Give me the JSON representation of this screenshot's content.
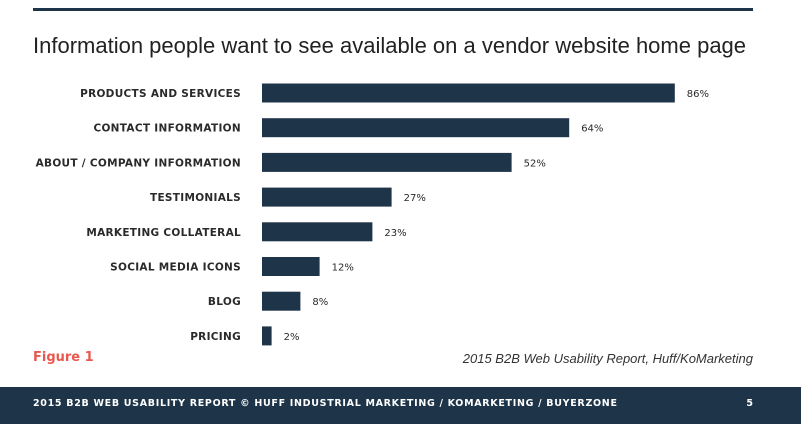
{
  "colors": {
    "bar": "#1e3449",
    "footer_bg": "#1e3449",
    "figure_label": "#e8584f",
    "text": "#2a2a2a"
  },
  "chart_data": {
    "type": "bar",
    "orientation": "horizontal",
    "title": "Information people want to see available on a vendor website home page",
    "categories": [
      "PRODUCTS AND SERVICES",
      "CONTACT INFORMATION",
      "ABOUT / COMPANY INFORMATION",
      "TESTIMONIALS",
      "MARKETING COLLATERAL",
      "SOCIAL MEDIA ICONS",
      "BLOG",
      "PRICING"
    ],
    "values": [
      86,
      64,
      52,
      27,
      23,
      12,
      8,
      2
    ],
    "value_labels": [
      "86%",
      "64%",
      "52%",
      "27%",
      "23%",
      "12%",
      "8%",
      "2%"
    ],
    "xlim": [
      0,
      100
    ],
    "grid": false,
    "legend": "none"
  },
  "figure": {
    "label": "Figure 1",
    "source": "2015 B2B Web Usability Report, Huff/KoMarketing"
  },
  "footer": {
    "text": "2015 B2B WEB USABILITY REPORT © HUFF INDUSTRIAL MARKETING / KOMARKETING / BUYERZONE",
    "page_number": "5"
  }
}
